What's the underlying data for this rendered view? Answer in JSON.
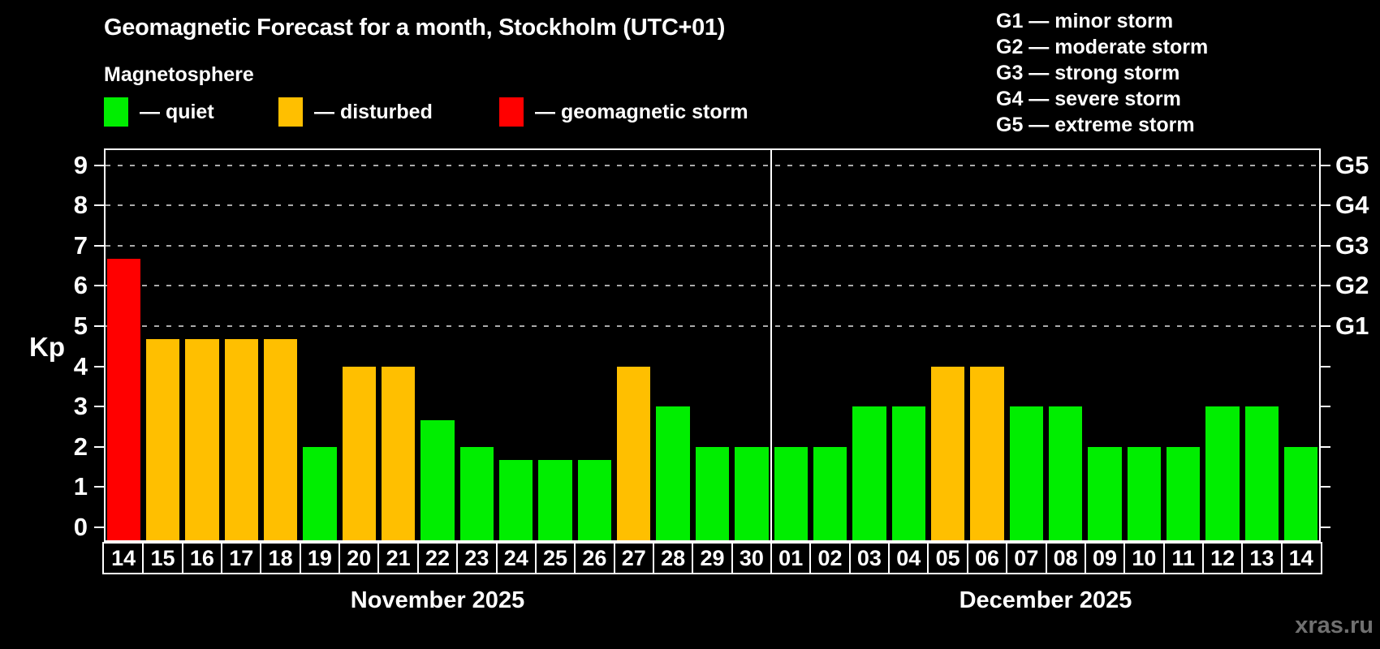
{
  "header": {
    "title": "Geomagnetic Forecast for a month, Stockholm (UTC+01)",
    "subtitle": "Magnetosphere"
  },
  "status_legend": [
    {
      "name": "quiet",
      "label": "— quiet",
      "color": "#00ee00"
    },
    {
      "name": "disturbed",
      "label": "— disturbed",
      "color": "#ffbf00"
    },
    {
      "name": "storm",
      "label": "— geomagnetic storm",
      "color": "#ff0000"
    }
  ],
  "g_legend": [
    "G1 — minor storm",
    "G2 — moderate storm",
    "G3 — strong storm",
    "G4 — severe storm",
    "G5 — extreme storm"
  ],
  "watermark": "xras.ru",
  "chart_data": {
    "type": "bar",
    "title": "Geomagnetic Forecast for a month, Stockholm (UTC+01)",
    "subtitle": "Magnetosphere",
    "ylabel": "Kp",
    "ylim": [
      0,
      9
    ],
    "yticks": [
      0,
      1,
      2,
      3,
      4,
      5,
      6,
      7,
      8,
      9
    ],
    "gridlines_at_kp": [
      5,
      6,
      7,
      8,
      9
    ],
    "grid_style": "dashed horizontal lines at storm levels only",
    "right_axis": [
      {
        "kp": 5,
        "label": "G1"
      },
      {
        "kp": 6,
        "label": "G2"
      },
      {
        "kp": 7,
        "label": "G3"
      },
      {
        "kp": 8,
        "label": "G4"
      },
      {
        "kp": 9,
        "label": "G5"
      }
    ],
    "months": [
      {
        "label": "November 2025",
        "start_index": 0,
        "days": 17
      },
      {
        "label": "December 2025",
        "start_index": 17,
        "days": 14
      }
    ],
    "categories": [
      "14",
      "15",
      "16",
      "17",
      "18",
      "19",
      "20",
      "21",
      "22",
      "23",
      "24",
      "25",
      "26",
      "27",
      "28",
      "29",
      "30",
      "01",
      "02",
      "03",
      "04",
      "05",
      "06",
      "07",
      "08",
      "09",
      "10",
      "11",
      "12",
      "13",
      "14"
    ],
    "series": [
      {
        "name": "Kp forecast",
        "values": [
          6.67,
          4.67,
          4.67,
          4.67,
          4.67,
          2,
          4,
          4,
          2.67,
          2,
          1.67,
          1.67,
          1.67,
          4,
          3,
          2,
          2,
          2,
          2,
          3,
          3,
          4,
          4,
          3,
          3,
          2,
          2,
          2,
          3,
          3,
          2
        ],
        "statuses": [
          "storm",
          "disturbed",
          "disturbed",
          "disturbed",
          "disturbed",
          "quiet",
          "disturbed",
          "disturbed",
          "quiet",
          "quiet",
          "quiet",
          "quiet",
          "quiet",
          "disturbed",
          "quiet",
          "quiet",
          "quiet",
          "quiet",
          "quiet",
          "quiet",
          "quiet",
          "disturbed",
          "disturbed",
          "quiet",
          "quiet",
          "quiet",
          "quiet",
          "quiet",
          "quiet",
          "quiet",
          "quiet"
        ]
      }
    ],
    "status_colors": {
      "quiet": "#00ee00",
      "disturbed": "#ffbf00",
      "storm": "#ff0000"
    }
  }
}
